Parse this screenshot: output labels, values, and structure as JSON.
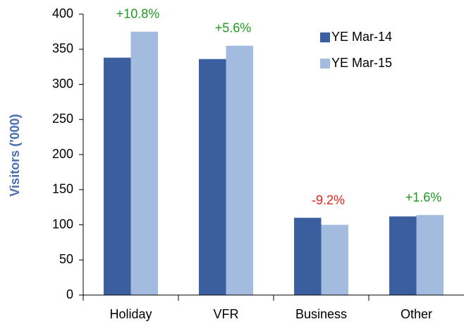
{
  "chart_data": {
    "type": "bar",
    "ylabel": "Visitors ('000)",
    "categories": [
      "Holiday",
      "VFR",
      "Business",
      "Other"
    ],
    "series": [
      {
        "name": "YE Mar-14",
        "color": "#3b5f9e",
        "values": [
          338,
          336,
          110,
          112
        ]
      },
      {
        "name": "YE Mar-15",
        "color": "#a3bbdf",
        "values": [
          375,
          355,
          100,
          114
        ]
      }
    ],
    "annotations": [
      {
        "text": "+10.8%",
        "color": "#1e9a1e"
      },
      {
        "text": "+5.6%",
        "color": "#1e9a1e"
      },
      {
        "text": "-9.2%",
        "color": "#e8201c"
      },
      {
        "text": "+1.6%",
        "color": "#1e9a1e"
      }
    ],
    "ylim": [
      0,
      400
    ],
    "yticks": [
      0,
      50,
      100,
      150,
      200,
      250,
      300,
      350,
      400
    ],
    "legend": "upper right"
  }
}
